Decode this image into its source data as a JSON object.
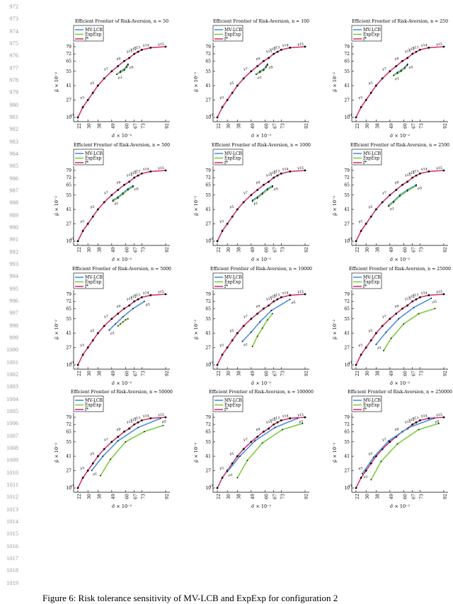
{
  "line_numbers": [
    "972",
    "973",
    "974",
    "975",
    "976",
    "977",
    "978",
    "979",
    "980",
    "981",
    "982",
    "983",
    "984",
    "985",
    "986",
    "987",
    "988",
    "989",
    "990",
    "991",
    "992",
    "993",
    "994",
    "995",
    "996",
    "997",
    "998",
    "999",
    "1000",
    "1001",
    "1002",
    "1003",
    "1004",
    "1005",
    "1006",
    "1007",
    "1008",
    "1009",
    "1010",
    "1011",
    "1012",
    "1013",
    "1014",
    "1015",
    "1016",
    "1017",
    "1018",
    "1019"
  ],
  "caption": "Figure 6: Risk tolerance sensitivity of MV-LCB and ExpExp for configuration 2",
  "colors": {
    "mvlcb": "#4a90e2",
    "expexp": "#7ccd3a",
    "frontier": "#d6336c",
    "point": "#000000"
  },
  "shared": {
    "title_prefix": "Efficient Frontier of Risk-Aversion, n = ",
    "legend": [
      "MV-LCB",
      "ExpExp",
      "f*"
    ],
    "xlabel": "σ̂ × 10⁻²",
    "ylabel": "μ̂ × 10⁻²",
    "xticks": [
      "22",
      "30",
      "38",
      "49",
      "60",
      "67",
      "73",
      "92"
    ],
    "yticks": [
      "10",
      "27",
      "41",
      "55",
      "65",
      "72",
      "79"
    ],
    "gamma_labels": [
      "γ1",
      "γ2",
      "γ3",
      "γ4",
      "γ5",
      "γ6",
      "γ7",
      "γ8",
      "γ9",
      "γ10",
      "γ11",
      "γ12",
      "γ13",
      "γ14",
      "γ15"
    ],
    "rho_labels": [
      "ρ1",
      "ρ2",
      "ρ3",
      "ρ4",
      "ρ5"
    ],
    "frontier": {
      "x": [
        22,
        26,
        30,
        34,
        38,
        43,
        49,
        54,
        59,
        63,
        67,
        70,
        73,
        80,
        92
      ],
      "y": [
        10,
        20,
        27,
        34,
        41,
        48,
        55,
        60,
        65,
        68,
        72,
        74,
        76,
        78,
        79
      ]
    }
  },
  "chart_data": [
    {
      "type": "line",
      "n": "50",
      "series": [
        {
          "name": "MV-LCB",
          "x": [
            53,
            56,
            59,
            61,
            62
          ],
          "y": [
            52,
            55,
            57,
            60,
            62
          ]
        },
        {
          "name": "ExpExp",
          "x": [
            53,
            56,
            59,
            61,
            62
          ],
          "y": [
            52,
            54,
            56,
            59,
            61
          ]
        }
      ]
    },
    {
      "type": "line",
      "n": "100",
      "series": [
        {
          "name": "MV-LCB",
          "x": [
            53,
            56,
            59,
            61,
            62
          ],
          "y": [
            52,
            55,
            57,
            60,
            62
          ]
        },
        {
          "name": "ExpExp",
          "x": [
            53,
            56,
            59,
            61,
            62
          ],
          "y": [
            52,
            54,
            56,
            59,
            61
          ]
        }
      ]
    },
    {
      "type": "line",
      "n": "250",
      "series": [
        {
          "name": "MV-LCB",
          "x": [
            52,
            55,
            58,
            61,
            63
          ],
          "y": [
            51,
            54,
            56,
            59,
            62
          ]
        },
        {
          "name": "ExpExp",
          "x": [
            52,
            55,
            58,
            61,
            63
          ],
          "y": [
            51,
            53,
            55,
            58,
            61
          ]
        }
      ]
    },
    {
      "type": "line",
      "n": "500",
      "series": [
        {
          "name": "MV-LCB",
          "x": [
            50,
            54,
            58,
            62,
            66
          ],
          "y": [
            50,
            53,
            57,
            61,
            64
          ]
        },
        {
          "name": "ExpExp",
          "x": [
            50,
            54,
            58,
            62,
            66
          ],
          "y": [
            49,
            52,
            56,
            60,
            63
          ]
        }
      ]
    },
    {
      "type": "line",
      "n": "1000",
      "series": [
        {
          "name": "MV-LCB",
          "x": [
            50,
            54,
            58,
            62,
            66
          ],
          "y": [
            50,
            53,
            57,
            61,
            64
          ]
        },
        {
          "name": "ExpExp",
          "x": [
            50,
            54,
            58,
            62,
            66
          ],
          "y": [
            49,
            52,
            56,
            60,
            63
          ]
        }
      ]
    },
    {
      "type": "line",
      "n": "2500",
      "series": [
        {
          "name": "MV-LCB",
          "x": [
            48,
            52,
            57,
            63,
            70
          ],
          "y": [
            45,
            49,
            55,
            60,
            65
          ]
        },
        {
          "name": "ExpExp",
          "x": [
            48,
            52,
            57,
            63,
            70
          ],
          "y": [
            44,
            48,
            54,
            59,
            64
          ]
        }
      ]
    },
    {
      "type": "line",
      "n": "5000",
      "series": [
        {
          "name": "MV-LCB",
          "x": [
            47,
            52,
            58,
            66,
            75
          ],
          "y": [
            44,
            50,
            57,
            65,
            72
          ]
        },
        {
          "name": "ExpExp",
          "x": [
            54,
            56,
            58,
            60,
            62
          ],
          "y": [
            48,
            50,
            52,
            54,
            55
          ]
        }
      ]
    },
    {
      "type": "line",
      "n": "10000",
      "series": [
        {
          "name": "MV-LCB",
          "x": [
            42,
            49,
            56,
            65,
            80
          ],
          "y": [
            33,
            42,
            52,
            63,
            74
          ]
        },
        {
          "name": "ExpExp",
          "x": [
            50,
            54,
            58,
            62,
            66
          ],
          "y": [
            28,
            38,
            46,
            54,
            60
          ]
        }
      ]
    },
    {
      "type": "line",
      "n": "25000",
      "series": [
        {
          "name": "MV-LCB",
          "x": [
            38,
            46,
            56,
            68,
            82
          ],
          "y": [
            30,
            42,
            55,
            66,
            75
          ]
        },
        {
          "name": "ExpExp",
          "x": [
            44,
            50,
            60,
            72,
            85
          ],
          "y": [
            24,
            36,
            50,
            60,
            65
          ]
        }
      ]
    },
    {
      "type": "line",
      "n": "50000",
      "series": [
        {
          "name": "MV-LCB",
          "x": [
            33,
            42,
            54,
            70,
            88
          ],
          "y": [
            27,
            41,
            56,
            69,
            78
          ]
        },
        {
          "name": "ExpExp",
          "x": [
            40,
            48,
            60,
            75,
            90
          ],
          "y": [
            22,
            38,
            55,
            65,
            71
          ]
        }
      ]
    },
    {
      "type": "line",
      "n": "100000",
      "series": [
        {
          "name": "MV-LCB",
          "x": [
            30,
            40,
            52,
            68,
            86
          ],
          "y": [
            26,
            41,
            56,
            69,
            78
          ]
        },
        {
          "name": "ExpExp",
          "x": [
            38,
            46,
            58,
            74,
            90
          ],
          "y": [
            20,
            37,
            54,
            67,
            73
          ]
        }
      ]
    },
    {
      "type": "line",
      "n": "250000",
      "series": [
        {
          "name": "MV-LCB",
          "x": [
            27,
            36,
            48,
            64,
            84
          ],
          "y": [
            24,
            40,
            56,
            69,
            78
          ]
        },
        {
          "name": "ExpExp",
          "x": [
            34,
            42,
            55,
            72,
            88
          ],
          "y": [
            18,
            36,
            53,
            67,
            73
          ]
        }
      ]
    }
  ]
}
